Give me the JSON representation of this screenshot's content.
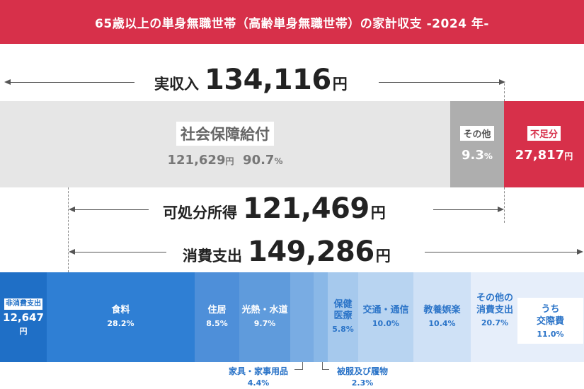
{
  "title": "65歳以上の単身無職世帯（高齢単身無職世帯）の家計収支 -2024 年-",
  "income": {
    "label": "実収入",
    "value": "134,116",
    "unit": "円",
    "social_security": {
      "label": "社会保障給付",
      "amount": "121,629",
      "unit": "円",
      "percent": "90.7",
      "pct_unit": "%"
    },
    "other": {
      "label": "その他",
      "percent": "9.3",
      "pct_unit": "%"
    },
    "deficit": {
      "label": "不足分",
      "amount": "27,817",
      "unit": "円"
    }
  },
  "disposable": {
    "label": "可処分所得",
    "value": "121,469",
    "unit": "円"
  },
  "consumption": {
    "label": "消費支出",
    "value": "149,286",
    "unit": "円"
  },
  "non_consumption": {
    "label": "非消費支出",
    "amount": "12,647",
    "unit": "円"
  },
  "categories": [
    {
      "name": "食料",
      "percent": "28.2%"
    },
    {
      "name": "住居",
      "percent": "8.5%"
    },
    {
      "name": "光熱・水道",
      "percent": "9.7%"
    },
    {
      "name": "家具・家事用品",
      "percent": "4.4%"
    },
    {
      "name": "被服及び履物",
      "percent": "2.3%"
    },
    {
      "name_line1": "保健",
      "name_line2": "医療",
      "percent": "5.8%"
    },
    {
      "name": "交通・通信",
      "percent": "10.0%"
    },
    {
      "name": "教養娯楽",
      "percent": "10.4%"
    },
    {
      "name_line1": "その他の",
      "name_line2": "消費支出",
      "percent": "20.7%"
    },
    {
      "name_line1": "うち",
      "name_line2": "交際費",
      "percent": "11.0%"
    }
  ],
  "colors": {
    "title_bg": "#d7304a",
    "social_security": "#e6e6e6",
    "other_income": "#aeaeae",
    "deficit": "#d7304a",
    "non_consumption": "#1f6fc6",
    "food": "#2f7fd4",
    "housing": "#4e8fd9",
    "utilities": "#5f9bdc",
    "furniture": "#79ace3",
    "clothing": "#8ab8e7",
    "medical": "#a6c9ed",
    "transport": "#b8d4f1",
    "culture": "#cfe1f6",
    "other_consumption": "#e6eefa"
  },
  "chart_data": {
    "type": "bar",
    "title": "65歳以上の単身無職世帯（高齢単身無職世帯）の家計収支 -2024 年-",
    "income_total": 134116,
    "income_parts": [
      {
        "name": "社会保障給付",
        "amount": 121629,
        "percent": 90.7
      },
      {
        "name": "その他",
        "percent": 9.3
      },
      {
        "name": "不足分",
        "amount": 27817
      }
    ],
    "disposable_income": 121469,
    "consumption_total": 149286,
    "non_consumption": 12647,
    "consumption_breakdown": [
      {
        "name": "食料",
        "percent": 28.2
      },
      {
        "name": "住居",
        "percent": 8.5
      },
      {
        "name": "光熱・水道",
        "percent": 9.7
      },
      {
        "name": "家具・家事用品",
        "percent": 4.4
      },
      {
        "name": "被服及び履物",
        "percent": 2.3
      },
      {
        "name": "保健医療",
        "percent": 5.8
      },
      {
        "name": "交通・通信",
        "percent": 10.0
      },
      {
        "name": "教養娯楽",
        "percent": 10.4
      },
      {
        "name": "その他の消費支出",
        "percent": 20.7
      }
    ],
    "sub_item": {
      "name": "うち交際費",
      "percent": 11.0
    }
  }
}
